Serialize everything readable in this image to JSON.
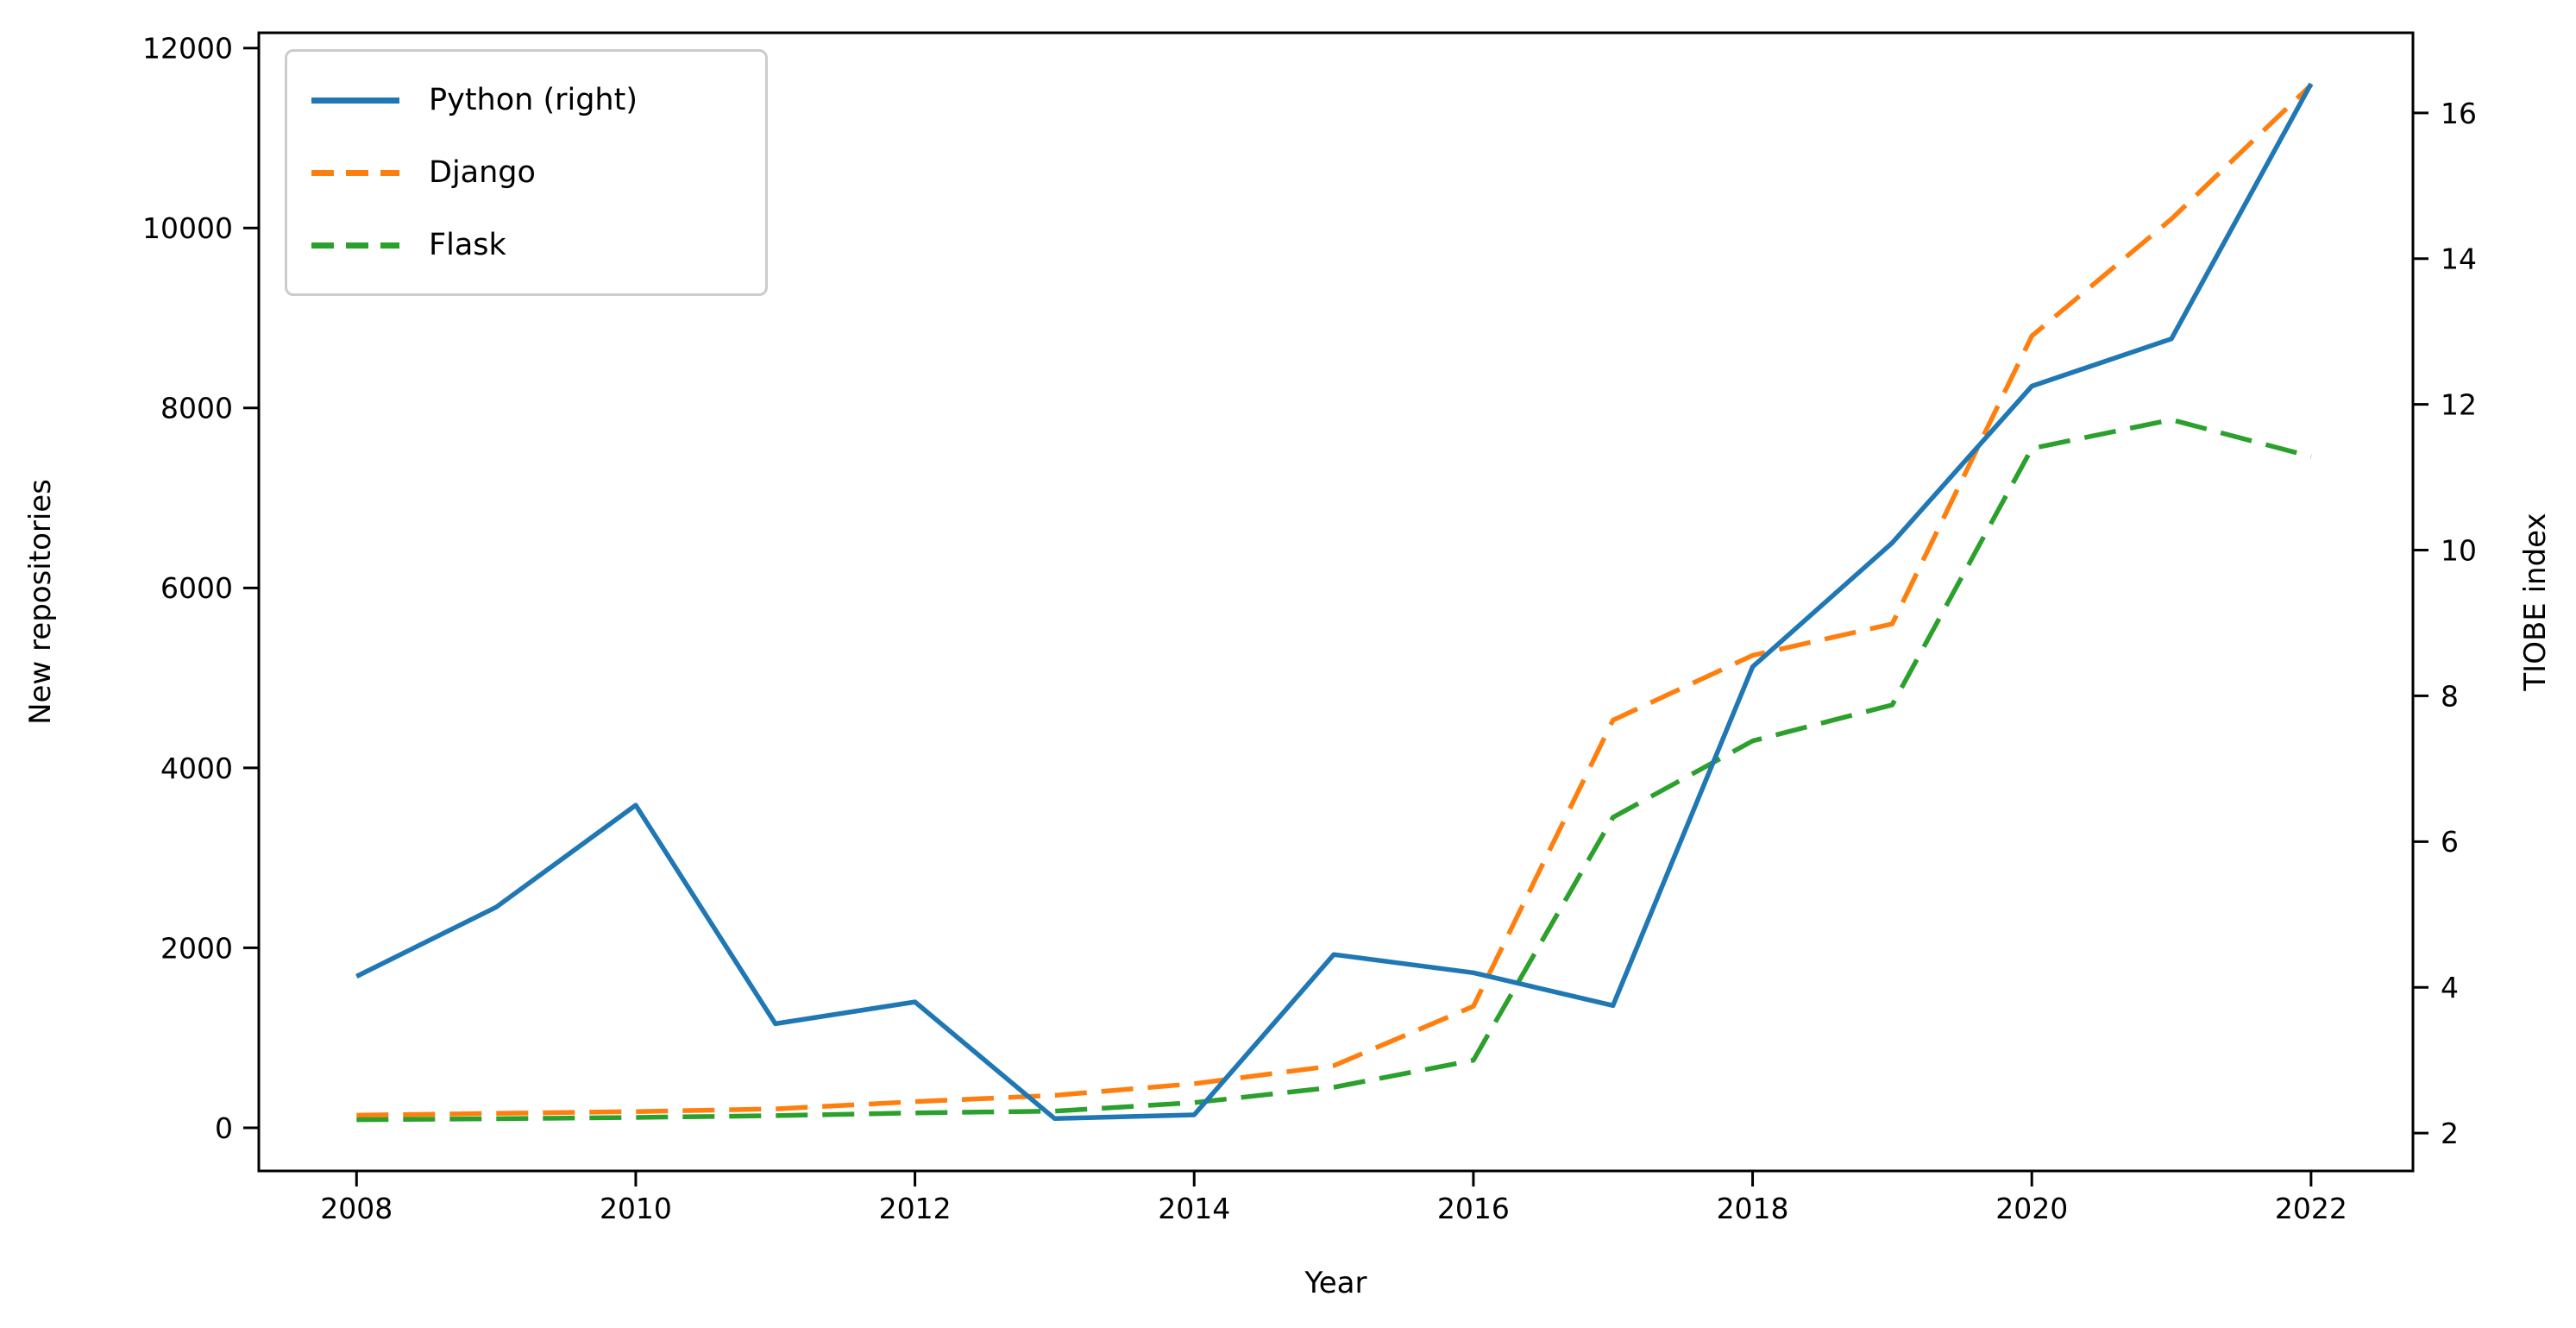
{
  "chart_data": {
    "type": "line",
    "title": "",
    "xlabel": "Year",
    "ylabel_left": "New repositories",
    "ylabel_right": "TIOBE index",
    "grid": false,
    "legend_position": "upper-left",
    "background": "#ffffff",
    "axis_color": "#000000",
    "x": [
      2008,
      2009,
      2010,
      2011,
      2012,
      2013,
      2014,
      2015,
      2016,
      2017,
      2018,
      2019,
      2020,
      2021,
      2022
    ],
    "x_ticks": [
      2008,
      2010,
      2012,
      2014,
      2016,
      2018,
      2020,
      2022
    ],
    "xlim": [
      2007.3,
      2022.73
    ],
    "yticks_left": [
      0,
      2000,
      4000,
      6000,
      8000,
      10000,
      12000
    ],
    "ylim_left": [
      -480,
      12170
    ],
    "yticks_right": [
      2,
      4,
      6,
      8,
      10,
      12,
      14,
      16
    ],
    "ylim_right": [
      1.48,
      17.1
    ],
    "series": [
      {
        "name": "Python (right)",
        "axis": "right",
        "color": "#1f77b4",
        "style": "solid",
        "values": [
          4.15,
          5.1,
          6.5,
          3.5,
          3.8,
          2.2,
          2.25,
          4.45,
          4.2,
          3.75,
          8.4,
          10.1,
          12.25,
          12.9,
          16.4
        ]
      },
      {
        "name": "Django",
        "axis": "left",
        "color": "#ff7f0e",
        "style": "dashed",
        "values": [
          140,
          160,
          180,
          210,
          290,
          360,
          490,
          690,
          1350,
          4530,
          5250,
          5600,
          8800,
          10100,
          11590
        ]
      },
      {
        "name": "Flask",
        "axis": "left",
        "color": "#2ca02c",
        "style": "dashed",
        "values": [
          90,
          100,
          115,
          135,
          165,
          185,
          280,
          450,
          750,
          3450,
          4300,
          4700,
          7550,
          7870,
          7460
        ]
      }
    ]
  }
}
